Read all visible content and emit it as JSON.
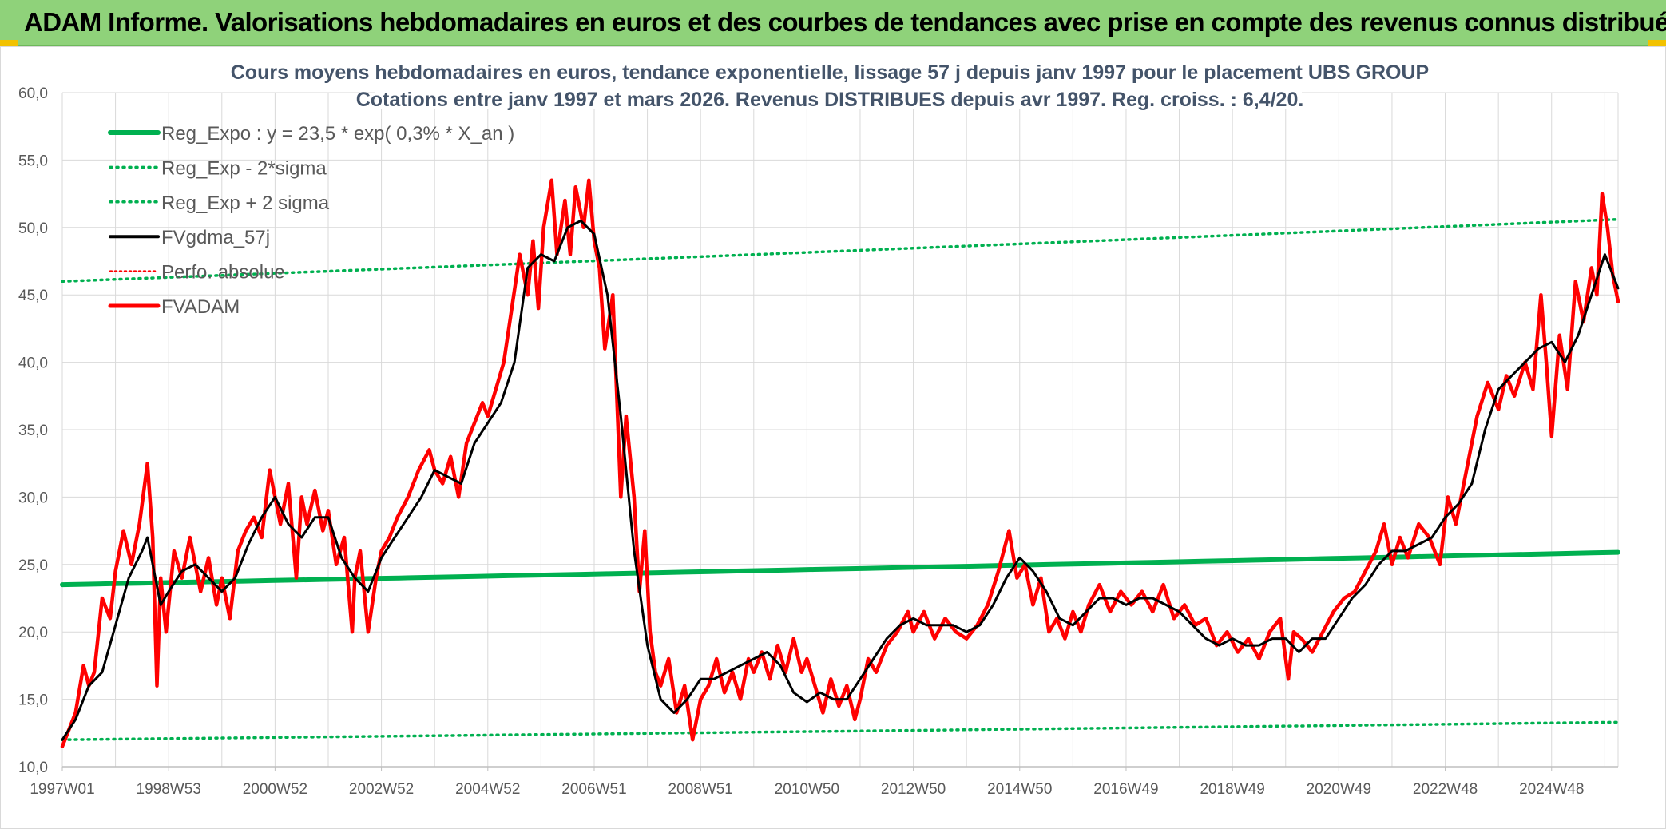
{
  "banner": {
    "title": "ADAM Informe. Valorisations hebdomadaires en euros et des courbes de tendances avec prise en compte des revenus connus distribués"
  },
  "colors": {
    "banner_bg": "#8fd27a",
    "reg_expo": "#00b050",
    "gdma": "#000000",
    "fvadam": "#ff0000",
    "grid": "#d9d9d9"
  },
  "chart_data": {
    "type": "line",
    "title_line1": "Cours moyens hebdomadaires en euros, tendance exponentielle, lissage 57 j depuis janv 1997 pour le placement UBS GROUP",
    "title_line2": "Cotations entre janv 1997 et mars 2026. Revenus DISTRIBUES depuis avr 1997. Reg. croiss. : 6,4/20.",
    "xlabel": "",
    "ylabel": "",
    "xlim": [
      1997.0,
      2026.25
    ],
    "ylim": [
      10,
      60
    ],
    "grid": true,
    "legend_position": "top-left",
    "y_ticks": [
      "60,0",
      "55,0",
      "50,0",
      "45,0",
      "40,0",
      "35,0",
      "30,0",
      "25,0",
      "20,0",
      "15,0",
      "10,0"
    ],
    "y_tick_values": [
      60,
      55,
      50,
      45,
      40,
      35,
      30,
      25,
      20,
      15,
      10
    ],
    "x_ticks": [
      "1997W01",
      "1998W53",
      "2000W52",
      "2002W52",
      "2004W52",
      "2006W51",
      "2008W51",
      "2010W50",
      "2012W50",
      "2014W50",
      "2016W49",
      "2018W49",
      "2020W49",
      "2022W48",
      "2024W48"
    ],
    "x_tick_values": [
      1997.0,
      1999.0,
      2001.0,
      2003.0,
      2005.0,
      2007.0,
      2009.0,
      2011.0,
      2013.0,
      2015.0,
      2017.0,
      2019.0,
      2021.0,
      2023.0,
      2025.0
    ],
    "legend": [
      "Reg_Expo : y = 23,5 * exp( 0,3% *  X_an )",
      "Reg_Exp - 2*sigma",
      "Reg_Exp + 2 sigma",
      "FVgdma_57j",
      "Perfo. absolue",
      "FVADAM"
    ],
    "series": [
      {
        "name": "Reg_Expo : y = 23,5 * exp( 0,3% *  X_an )",
        "style": "solid-thick",
        "color": "#00b050",
        "x": [
          1997.0,
          2026.25
        ],
        "y": [
          23.5,
          25.9
        ]
      },
      {
        "name": "Reg_Exp - 2*sigma",
        "style": "dotted",
        "color": "#00b050",
        "x": [
          1997.0,
          2026.25
        ],
        "y": [
          12.0,
          13.3
        ]
      },
      {
        "name": "Reg_Exp + 2 sigma",
        "style": "dotted",
        "color": "#00b050",
        "x": [
          1997.0,
          2026.25
        ],
        "y": [
          46.0,
          50.6
        ]
      },
      {
        "name": "FVgdma_57j",
        "style": "solid",
        "color": "#000000",
        "x": [
          1997.0,
          1997.25,
          1997.5,
          1997.75,
          1998.0,
          1998.25,
          1998.5,
          1998.6,
          1998.75,
          1998.85,
          1999.0,
          1999.25,
          1999.5,
          1999.75,
          2000.0,
          2000.25,
          2000.5,
          2000.75,
          2001.0,
          2001.25,
          2001.5,
          2001.75,
          2002.0,
          2002.25,
          2002.5,
          2002.75,
          2003.0,
          2003.25,
          2003.5,
          2003.75,
          2004.0,
          2004.25,
          2004.5,
          2004.75,
          2005.0,
          2005.25,
          2005.5,
          2005.75,
          2006.0,
          2006.25,
          2006.5,
          2006.75,
          2007.0,
          2007.25,
          2007.5,
          2007.75,
          2008.0,
          2008.25,
          2008.5,
          2008.75,
          2009.0,
          2009.25,
          2009.5,
          2009.75,
          2010.0,
          2010.25,
          2010.5,
          2010.75,
          2011.0,
          2011.25,
          2011.5,
          2011.75,
          2012.0,
          2012.25,
          2012.5,
          2012.75,
          2013.0,
          2013.25,
          2013.5,
          2013.75,
          2014.0,
          2014.25,
          2014.5,
          2014.75,
          2015.0,
          2015.25,
          2015.5,
          2015.75,
          2016.0,
          2016.25,
          2016.5,
          2016.75,
          2017.0,
          2017.25,
          2017.5,
          2017.75,
          2018.0,
          2018.25,
          2018.5,
          2018.75,
          2019.0,
          2019.25,
          2019.5,
          2019.75,
          2020.0,
          2020.25,
          2020.5,
          2020.75,
          2021.0,
          2021.25,
          2021.5,
          2021.75,
          2022.0,
          2022.25,
          2022.5,
          2022.75,
          2023.0,
          2023.25,
          2023.5,
          2023.75,
          2024.0,
          2024.25,
          2024.5,
          2024.75,
          2025.0,
          2025.25,
          2025.5,
          2025.75,
          2026.0,
          2026.25
        ],
        "y": [
          12.0,
          13.5,
          16.0,
          17.0,
          20.5,
          24.0,
          26.0,
          27.0,
          24.0,
          22.0,
          23.0,
          24.5,
          25.0,
          24.0,
          23.0,
          24.0,
          26.5,
          28.5,
          30.0,
          28.0,
          27.0,
          28.5,
          28.5,
          25.5,
          24.0,
          23.0,
          25.5,
          27.0,
          28.5,
          30.0,
          32.0,
          31.5,
          31.0,
          34.0,
          35.5,
          37.0,
          40.0,
          47.0,
          48.0,
          47.5,
          50.0,
          50.5,
          49.5,
          45.0,
          36.0,
          26.0,
          19.0,
          15.0,
          14.0,
          15.0,
          16.5,
          16.5,
          17.0,
          17.5,
          18.0,
          18.5,
          17.5,
          15.5,
          14.8,
          15.5,
          15.0,
          15.0,
          16.5,
          18.0,
          19.5,
          20.5,
          21.0,
          20.5,
          20.5,
          20.5,
          20.0,
          20.5,
          22.0,
          24.0,
          25.5,
          24.5,
          23.0,
          21.0,
          20.5,
          21.5,
          22.5,
          22.5,
          22.0,
          22.5,
          22.5,
          22.0,
          21.5,
          20.5,
          19.5,
          19.0,
          19.5,
          19.0,
          19.0,
          19.5,
          19.5,
          18.5,
          19.5,
          19.5,
          21.0,
          22.5,
          23.5,
          25.0,
          26.0,
          26.0,
          26.5,
          27.0,
          28.5,
          29.5,
          31.0,
          35.0,
          38.0,
          39.0,
          40.0,
          41.0,
          41.5,
          40.0,
          42.0,
          45.0,
          48.0,
          45.5
        ]
      },
      {
        "name": "FVADAM",
        "style": "solid-thick",
        "color": "#ff0000",
        "x": [
          1997.0,
          1997.1,
          1997.25,
          1997.4,
          1997.5,
          1997.6,
          1997.75,
          1997.9,
          1998.0,
          1998.15,
          1998.3,
          1998.45,
          1998.6,
          1998.7,
          1998.78,
          1998.85,
          1998.95,
          1999.1,
          1999.25,
          1999.4,
          1999.5,
          1999.6,
          1999.75,
          1999.9,
          2000.0,
          2000.15,
          2000.3,
          2000.45,
          2000.6,
          2000.75,
          2000.9,
          2001.0,
          2001.1,
          2001.25,
          2001.4,
          2001.5,
          2001.6,
          2001.75,
          2001.9,
          2002.0,
          2002.15,
          2002.3,
          2002.45,
          2002.5,
          2002.6,
          2002.75,
          2002.9,
          2003.0,
          2003.15,
          2003.3,
          2003.5,
          2003.7,
          2003.9,
          2004.0,
          2004.15,
          2004.3,
          2004.45,
          2004.6,
          2004.75,
          2004.9,
          2005.0,
          2005.15,
          2005.3,
          2005.45,
          2005.6,
          2005.75,
          2005.85,
          2005.95,
          2006.05,
          2006.2,
          2006.3,
          2006.45,
          2006.55,
          2006.65,
          2006.8,
          2006.9,
          2007.0,
          2007.1,
          2007.2,
          2007.35,
          2007.5,
          2007.6,
          2007.75,
          2007.85,
          2007.95,
          2008.05,
          2008.15,
          2008.25,
          2008.4,
          2008.55,
          2008.7,
          2008.85,
          2009.0,
          2009.15,
          2009.3,
          2009.45,
          2009.6,
          2009.75,
          2009.9,
          2010.0,
          2010.15,
          2010.3,
          2010.45,
          2010.6,
          2010.75,
          2010.9,
          2011.0,
          2011.15,
          2011.3,
          2011.45,
          2011.6,
          2011.75,
          2011.9,
          2012.0,
          2012.15,
          2012.3,
          2012.5,
          2012.7,
          2012.9,
          2013.0,
          2013.2,
          2013.4,
          2013.6,
          2013.8,
          2014.0,
          2014.2,
          2014.4,
          2014.6,
          2014.8,
          2014.95,
          2015.1,
          2015.25,
          2015.4,
          2015.55,
          2015.7,
          2015.85,
          2016.0,
          2016.15,
          2016.3,
          2016.5,
          2016.7,
          2016.9,
          2017.1,
          2017.3,
          2017.5,
          2017.7,
          2017.9,
          2018.1,
          2018.3,
          2018.5,
          2018.7,
          2018.9,
          2019.1,
          2019.3,
          2019.5,
          2019.7,
          2019.9,
          2020.05,
          2020.15,
          2020.3,
          2020.5,
          2020.7,
          2020.9,
          2021.1,
          2021.3,
          2021.5,
          2021.7,
          2021.85,
          2022.0,
          2022.15,
          2022.3,
          2022.5,
          2022.7,
          2022.9,
          2023.05,
          2023.2,
          2023.4,
          2023.6,
          2023.8,
          2024.0,
          2024.15,
          2024.3,
          2024.5,
          2024.65,
          2024.8,
          2024.9,
          2025.0,
          2025.15,
          2025.3,
          2025.45,
          2025.6,
          2025.75,
          2025.85,
          2025.95,
          2026.05,
          2026.15,
          2026.25
        ],
        "y": [
          11.5,
          12.5,
          14.0,
          17.5,
          16.0,
          17.0,
          22.5,
          21.0,
          24.5,
          27.5,
          25.0,
          28.0,
          32.5,
          27.0,
          16.0,
          24.0,
          20.0,
          26.0,
          24.0,
          27.0,
          25.0,
          23.0,
          25.5,
          22.0,
          24.0,
          21.0,
          26.0,
          27.5,
          28.5,
          27.0,
          32.0,
          30.0,
          28.0,
          31.0,
          24.0,
          30.0,
          28.0,
          30.5,
          27.5,
          29.0,
          25.0,
          27.0,
          20.0,
          24.0,
          26.0,
          20.0,
          24.0,
          26.0,
          27.0,
          28.5,
          30.0,
          32.0,
          33.5,
          32.0,
          31.0,
          33.0,
          30.0,
          34.0,
          35.5,
          37.0,
          36.0,
          38.0,
          40.0,
          44.0,
          48.0,
          45.0,
          49.0,
          44.0,
          50.0,
          53.5,
          48.0,
          52.0,
          48.0,
          53.0,
          50.0,
          53.5,
          49.0,
          47.0,
          41.0,
          45.0,
          30.0,
          36.0,
          30.0,
          23.0,
          27.5,
          20.0,
          17.0,
          16.0,
          18.0,
          14.0,
          16.0,
          12.0,
          15.0,
          16.0,
          18.0,
          15.5,
          17.0,
          15.0,
          18.0,
          17.0,
          18.5,
          16.5,
          19.0,
          17.0,
          19.5,
          17.0,
          18.0,
          16.0,
          14.0,
          16.5,
          14.5,
          16.0,
          13.5,
          15.0,
          18.0,
          17.0,
          19.0,
          20.0,
          21.5,
          20.0,
          21.5,
          19.5,
          21.0,
          20.0,
          19.5,
          20.5,
          22.0,
          24.5,
          27.5,
          24.0,
          25.0,
          22.0,
          24.0,
          20.0,
          21.0,
          19.5,
          21.5,
          20.0,
          22.0,
          23.5,
          21.5,
          23.0,
          22.0,
          23.0,
          21.5,
          23.5,
          21.0,
          22.0,
          20.5,
          21.0,
          19.0,
          20.0,
          18.5,
          19.5,
          18.0,
          20.0,
          21.0,
          16.5,
          20.0,
          19.5,
          18.5,
          20.0,
          21.5,
          22.5,
          23.0,
          24.5,
          26.0,
          28.0,
          25.0,
          27.0,
          25.5,
          28.0,
          27.0,
          25.0,
          30.0,
          28.0,
          32.0,
          36.0,
          38.5,
          36.5,
          39.0,
          37.5,
          40.0,
          38.0,
          45.0,
          40.0,
          34.5,
          42.0,
          38.0,
          46.0,
          43.0,
          47.0,
          45.0,
          52.5,
          50.0,
          46.5,
          44.5
        ]
      }
    ]
  }
}
